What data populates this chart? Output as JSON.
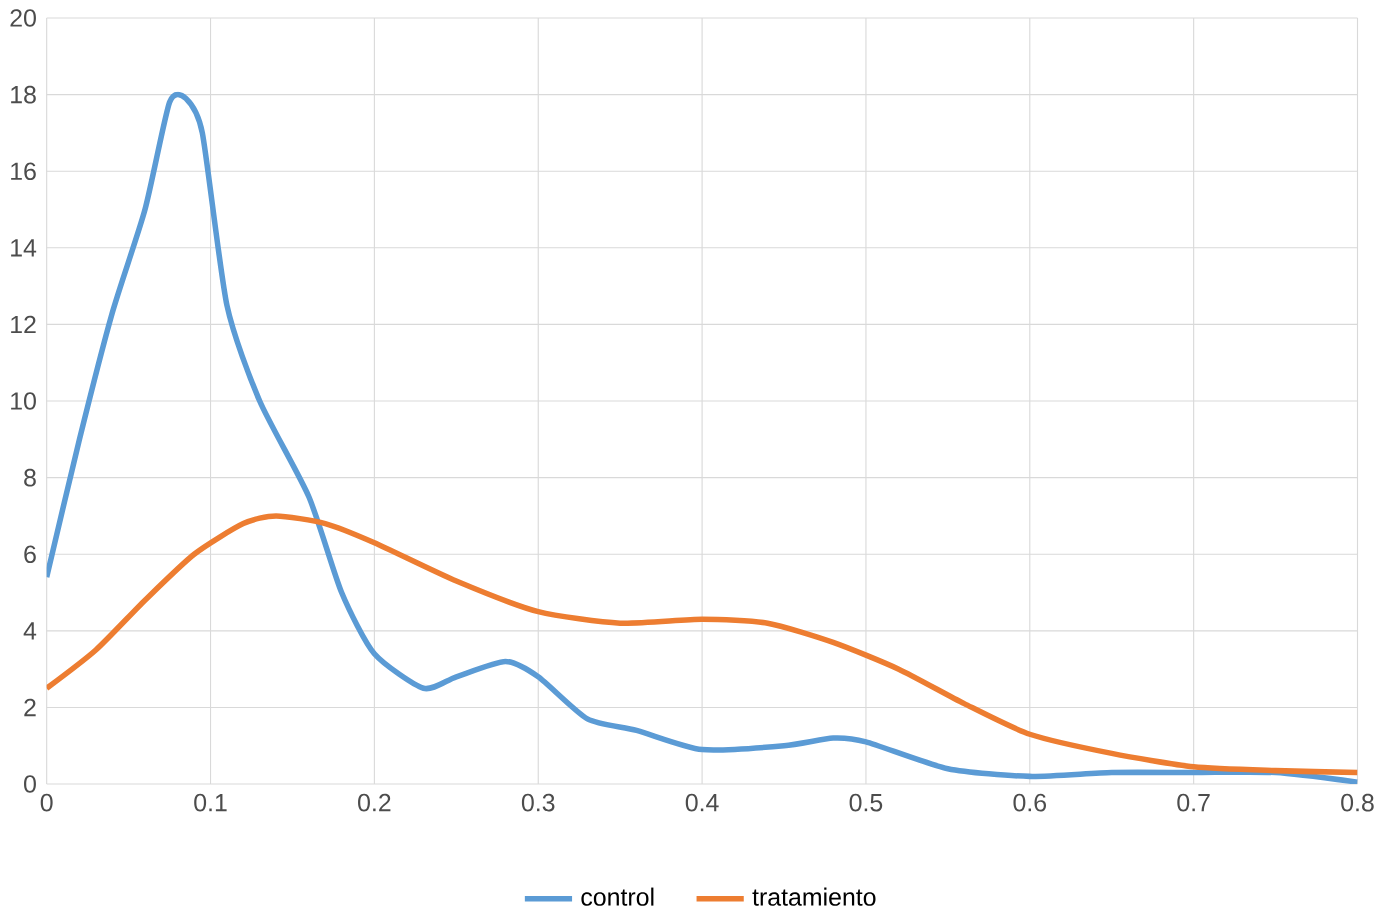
{
  "chart_data": {
    "type": "line",
    "xlim": [
      0,
      0.8
    ],
    "ylim": [
      0,
      20
    ],
    "xticks": [
      0,
      0.1,
      0.2,
      0.3,
      0.4,
      0.5,
      0.6,
      0.7,
      0.8
    ],
    "yticks": [
      0,
      2,
      4,
      6,
      8,
      10,
      12,
      14,
      16,
      18,
      20
    ],
    "grid": true,
    "legend": "bottom",
    "marker": "none",
    "line_style": "solid",
    "series": [
      {
        "name": "control",
        "color": "#5b9bd5",
        "x": [
          0,
          0.02,
          0.04,
          0.06,
          0.075,
          0.085,
          0.095,
          0.11,
          0.13,
          0.16,
          0.18,
          0.2,
          0.23,
          0.25,
          0.28,
          0.3,
          0.33,
          0.36,
          0.4,
          0.45,
          0.48,
          0.5,
          0.55,
          0.6,
          0.65,
          0.7,
          0.75,
          0.8
        ],
        "values": [
          5.4,
          9,
          12.3,
          15,
          17.8,
          17.9,
          17,
          12.5,
          10,
          7.5,
          5,
          3.4,
          2.5,
          2.8,
          3.2,
          2.8,
          1.7,
          1.4,
          0.9,
          1.0,
          1.2,
          1.1,
          0.4,
          0.2,
          0.3,
          0.3,
          0.3,
          0.05
        ]
      },
      {
        "name": "tratamiento",
        "color": "#ed7d31",
        "x": [
          0,
          0.03,
          0.06,
          0.09,
          0.12,
          0.14,
          0.17,
          0.2,
          0.25,
          0.3,
          0.35,
          0.4,
          0.44,
          0.48,
          0.52,
          0.56,
          0.6,
          0.65,
          0.7,
          0.75,
          0.8
        ],
        "values": [
          2.5,
          3.5,
          4.8,
          6.0,
          6.8,
          7.0,
          6.8,
          6.3,
          5.3,
          4.5,
          4.2,
          4.3,
          4.2,
          3.7,
          3.0,
          2.1,
          1.3,
          0.8,
          0.45,
          0.35,
          0.3
        ]
      }
    ]
  }
}
